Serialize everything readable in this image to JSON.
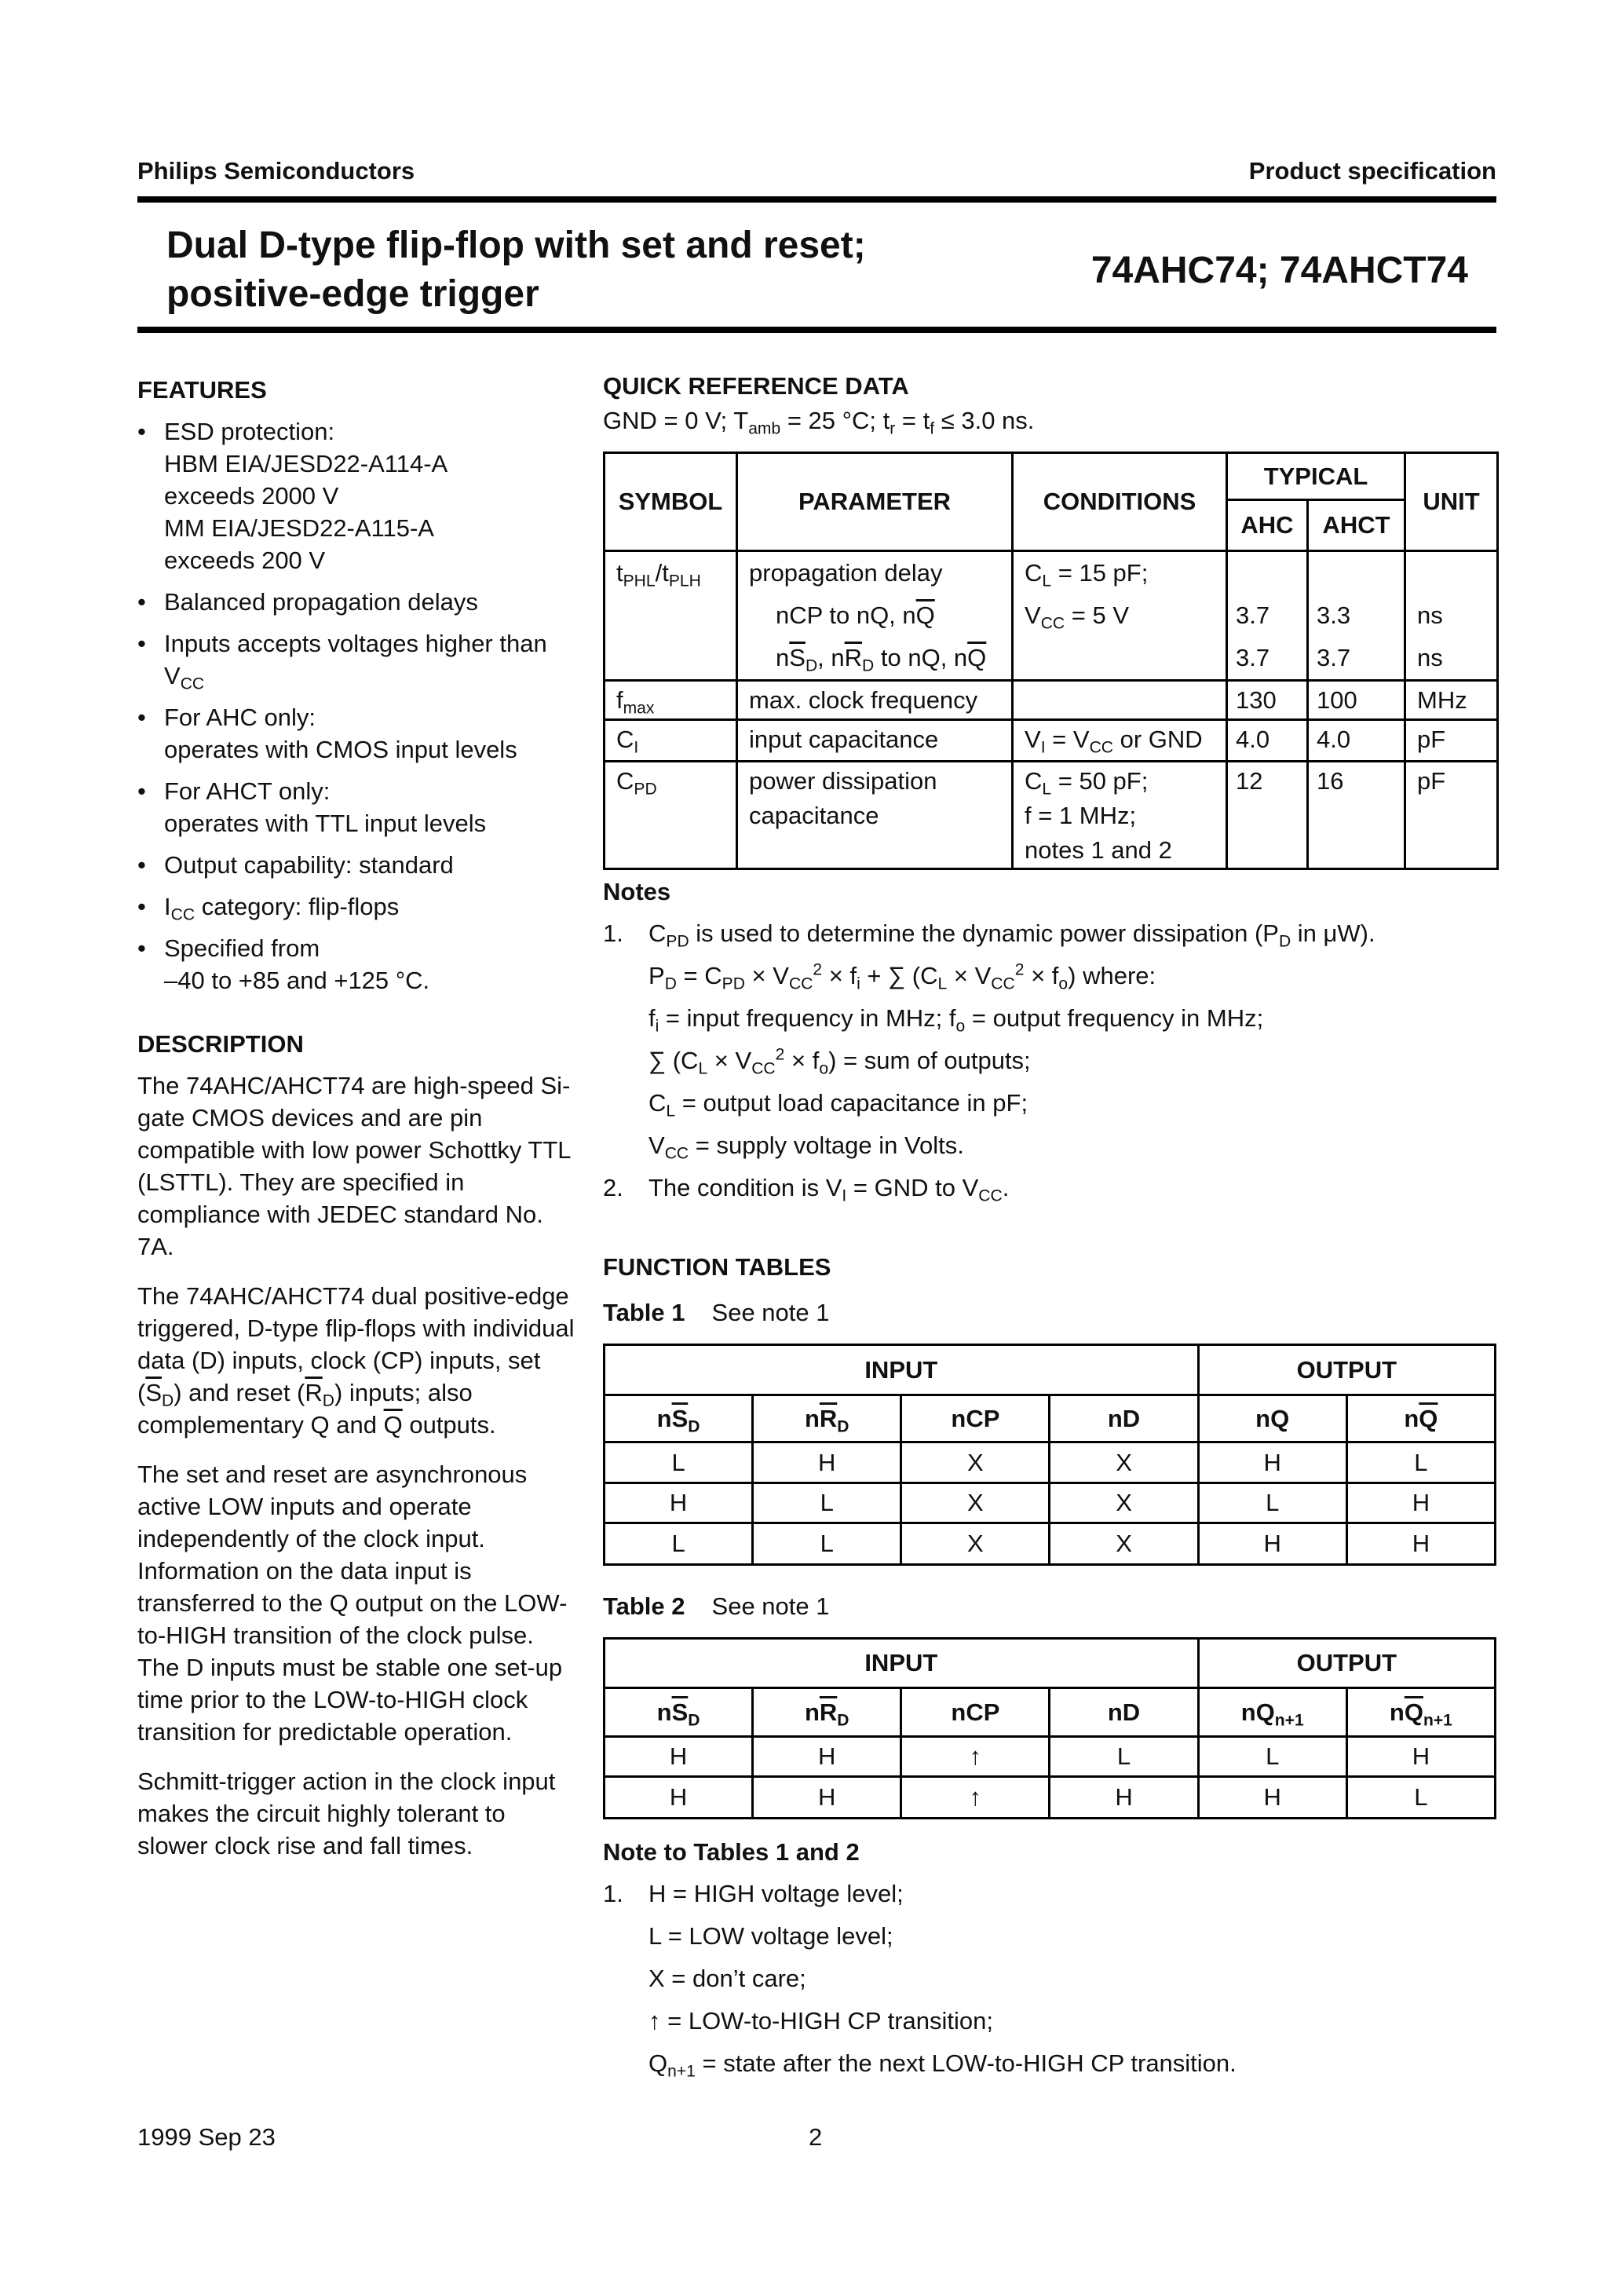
{
  "header": {
    "company": "Philips Semiconductors",
    "doc_type": "Product specification"
  },
  "title": {
    "line1": "Dual D-type flip-flop with set and reset;",
    "line2": "positive-edge trigger",
    "part": "74AHC74; 74AHCT74"
  },
  "features": {
    "heading": "FEATURES",
    "items": [
      [
        "ESD protection:",
        "HBM EIA/JESD22-A114-A",
        "exceeds 2000 V",
        "MM EIA/JESD22-A115-A",
        "exceeds 200 V"
      ],
      [
        "Balanced propagation delays"
      ],
      [
        "Inputs accepts voltages higher than V_{CC}"
      ],
      [
        "For AHC only:",
        "operates with CMOS input levels"
      ],
      [
        "For AHCT only:",
        "operates with TTL input levels"
      ],
      [
        "Output capability: standard"
      ],
      [
        "I_{CC} category: flip-flops"
      ],
      [
        "Specified from",
        "–40 to +85 and +125 °C."
      ]
    ]
  },
  "description": {
    "heading": "DESCRIPTION",
    "paragraphs": [
      "The 74AHC/AHCT74 are high-speed Si-gate CMOS devices and are pin compatible with low power Schottky TTL (LSTTL). They are specified in compliance with JEDEC standard No. 7A.",
      "The 74AHC/AHCT74 dual positive-edge triggered, D-type flip-flops with individual data (D) inputs, clock (CP) inputs, set (~{S}_{D}) and reset (~{R}_{D}) inputs; also complementary Q and ~{Q} outputs.",
      "The set and reset are asynchronous active LOW inputs and operate independently of the clock input. Information on the data input is transferred to the Q output on the LOW-to-HIGH transition of the clock pulse. The D inputs must be stable one set-up time prior to the LOW-to-HIGH clock transition for predictable operation.",
      "Schmitt-trigger action in the clock input makes the circuit highly tolerant to slower clock rise and fall times."
    ]
  },
  "quick_ref": {
    "heading": "QUICK REFERENCE DATA",
    "conditions": "GND = 0 V; T_{amb} = 25 °C; t_{r} = t_{f} ≤ 3.0 ns.",
    "headers": {
      "symbol": "SYMBOL",
      "parameter": "PARAMETER",
      "conditions": "CONDITIONS",
      "typical": "TYPICAL",
      "ahc": "AHC",
      "ahct": "AHCT",
      "unit": "UNIT"
    },
    "rows": [
      {
        "symbol": "t_{PHL}/t_{PLH}",
        "parameter": [
          "propagation delay",
          "    nCP to nQ, n~{Q}",
          "    n~{S}_{D}, n~{R}_{D} to nQ, n~{Q}"
        ],
        "conditions": [
          "C_{L} = 15 pF;",
          "V_{CC} = 5 V",
          ""
        ],
        "ahc": [
          "",
          "3.7",
          "3.7"
        ],
        "ahct": [
          "",
          "3.3",
          "3.7"
        ],
        "unit": [
          "",
          "ns",
          "ns"
        ]
      },
      {
        "symbol": "f_{max}",
        "parameter": [
          "max. clock frequency"
        ],
        "conditions": [
          ""
        ],
        "ahc": [
          "130"
        ],
        "ahct": [
          "100"
        ],
        "unit": [
          "MHz"
        ]
      },
      {
        "symbol": "C_{I}",
        "parameter": [
          "input capacitance"
        ],
        "conditions": [
          "V_{I} = V_{CC} or GND"
        ],
        "ahc": [
          "4.0"
        ],
        "ahct": [
          "4.0"
        ],
        "unit": [
          "pF"
        ]
      },
      {
        "symbol": "C_{PD}",
        "parameter": [
          "power dissipation",
          "capacitance"
        ],
        "conditions": [
          "C_{L} = 50 pF;",
          "f = 1 MHz;",
          "notes 1 and 2"
        ],
        "ahc": [
          "12"
        ],
        "ahct": [
          "16"
        ],
        "unit": [
          "pF"
        ]
      }
    ]
  },
  "notes": {
    "heading": "Notes",
    "items": [
      {
        "num": "1.",
        "lines": [
          "C_{PD} is used to determine the dynamic power dissipation (P_{D} in μW).",
          "P_{D} = C_{PD} × V_{CC}^{2} × f_{i} + ∑ (C_{L} × V_{CC}^{2} × f_{o}) where:",
          "f_{i} = input frequency in MHz; f_{o} = output frequency in MHz;",
          "∑ (C_{L} × V_{CC}^{2} × f_{o}) = sum of outputs;",
          "C_{L} = output load capacitance in pF;",
          "V_{CC} = supply voltage in Volts."
        ]
      },
      {
        "num": "2.",
        "lines": [
          "The condition is V_{I} = GND to V_{CC}."
        ]
      }
    ]
  },
  "function_tables": {
    "heading": "FUNCTION TABLES",
    "tables": [
      {
        "label": "Table 1",
        "caption": "See note 1",
        "input_label": "INPUT",
        "output_label": "OUTPUT",
        "columns": [
          "n~{S}_{D}",
          "n~{R}_{D}",
          "nCP",
          "nD",
          "nQ",
          "n~{Q}"
        ],
        "rows": [
          [
            "L",
            "H",
            "X",
            "X",
            "H",
            "L"
          ],
          [
            "H",
            "L",
            "X",
            "X",
            "L",
            "H"
          ],
          [
            "L",
            "L",
            "X",
            "X",
            "H",
            "H"
          ]
        ]
      },
      {
        "label": "Table 2",
        "caption": "See note 1",
        "input_label": "INPUT",
        "output_label": "OUTPUT",
        "columns": [
          "n~{S}_{D}",
          "n~{R}_{D}",
          "nCP",
          "nD",
          "nQ_{n+1}",
          "n~{Q}_{n+1}"
        ],
        "rows": [
          [
            "H",
            "H",
            "↑",
            "L",
            "L",
            "H"
          ],
          [
            "H",
            "H",
            "↑",
            "H",
            "H",
            "L"
          ]
        ]
      }
    ],
    "note_heading": "Note to Tables 1 and 2",
    "note": {
      "num": "1.",
      "lines": [
        "H = HIGH voltage level;",
        "L = LOW voltage level;",
        "X = don’t care;",
        "↑ = LOW-to-HIGH CP transition;",
        "Q_{n+1} = state after the next LOW-to-HIGH CP transition."
      ]
    }
  },
  "footer": {
    "date": "1999 Sep 23",
    "page": "2"
  }
}
